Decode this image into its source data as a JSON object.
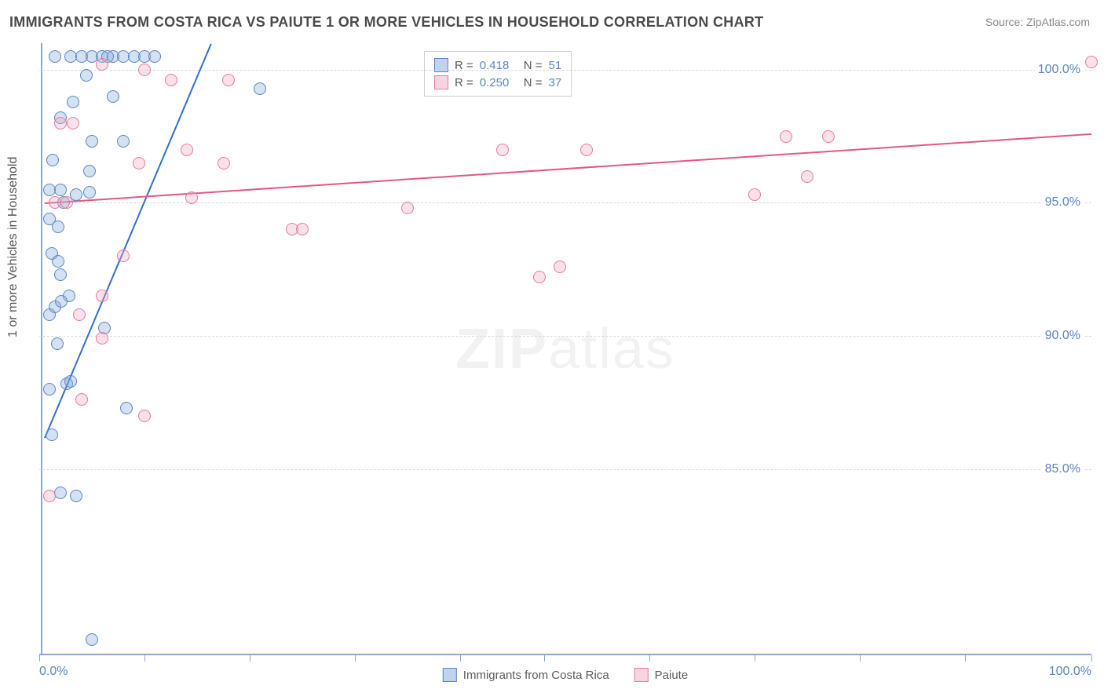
{
  "title": "IMMIGRANTS FROM COSTA RICA VS PAIUTE 1 OR MORE VEHICLES IN HOUSEHOLD CORRELATION CHART",
  "source": "Source: ZipAtlas.com",
  "watermark": {
    "part1": "ZIP",
    "part2": "atlas"
  },
  "chart": {
    "type": "scatter",
    "xlim": [
      0,
      100
    ],
    "ylim": [
      78,
      101
    ],
    "x_tick_positions": [
      0,
      10,
      20,
      30,
      40,
      48,
      58,
      68,
      78,
      88,
      100
    ],
    "x_tick_labels": {
      "0": "0.0%",
      "100": "100.0%"
    },
    "y_grid_positions": [
      85,
      90,
      95,
      100
    ],
    "y_tick_labels": [
      "85.0%",
      "90.0%",
      "95.0%",
      "100.0%"
    ],
    "y_axis_label": "1 or more Vehicles in Household",
    "background_color": "#ffffff",
    "grid_color": "#d9d9d9",
    "axis_color": "#8ca7d0",
    "tick_label_color": "#5b86c7",
    "marker_radius": 8,
    "series": [
      {
        "name": "Immigrants from Costa Rica",
        "color": "#5b86c7",
        "fill": "rgba(128,168,219,0.35)",
        "R": 0.418,
        "N": 51,
        "trend": {
          "x0": 0.5,
          "y0": 86.2,
          "x1": 16.3,
          "y1": 101,
          "color": "#2f6fd0",
          "width": 2
        },
        "points": [
          [
            1.5,
            100.5
          ],
          [
            3.0,
            100.5
          ],
          [
            4.0,
            100.5
          ],
          [
            5.0,
            100.5
          ],
          [
            6.0,
            100.5
          ],
          [
            7.0,
            100.5
          ],
          [
            8.0,
            100.5
          ],
          [
            9.0,
            100.5
          ],
          [
            10.0,
            100.5
          ],
          [
            11.0,
            100.5
          ],
          [
            6.5,
            100.5
          ],
          [
            4.5,
            99.8
          ],
          [
            21.0,
            99.3
          ],
          [
            7.0,
            99.0
          ],
          [
            3.2,
            98.8
          ],
          [
            2.0,
            98.2
          ],
          [
            5.0,
            97.3
          ],
          [
            8.0,
            97.3
          ],
          [
            1.3,
            96.6
          ],
          [
            4.8,
            96.2
          ],
          [
            1.0,
            95.5
          ],
          [
            2.0,
            95.5
          ],
          [
            3.5,
            95.3
          ],
          [
            4.8,
            95.4
          ],
          [
            2.3,
            95.0
          ],
          [
            1.0,
            94.4
          ],
          [
            1.8,
            94.1
          ],
          [
            1.2,
            93.1
          ],
          [
            1.8,
            92.8
          ],
          [
            2.0,
            92.3
          ],
          [
            2.8,
            91.5
          ],
          [
            1.5,
            91.1
          ],
          [
            1.0,
            90.8
          ],
          [
            2.1,
            91.3
          ],
          [
            6.2,
            90.3
          ],
          [
            1.7,
            89.7
          ],
          [
            2.6,
            88.2
          ],
          [
            3.0,
            88.3
          ],
          [
            1.0,
            88.0
          ],
          [
            8.3,
            87.3
          ],
          [
            1.2,
            86.3
          ],
          [
            3.5,
            84.0
          ],
          [
            2.0,
            84.1
          ],
          [
            5.0,
            78.6
          ]
        ]
      },
      {
        "name": "Paiute",
        "color": "#e77aa0",
        "fill": "rgba(242,170,195,0.35)",
        "R": 0.25,
        "N": 37,
        "trend": {
          "x0": 0.5,
          "y0": 95.0,
          "x1": 100,
          "y1": 97.6,
          "color": "#e35686",
          "width": 2
        },
        "points": [
          [
            100.0,
            100.3
          ],
          [
            6.0,
            100.2
          ],
          [
            10.0,
            100.0
          ],
          [
            12.5,
            99.6
          ],
          [
            18.0,
            99.6
          ],
          [
            3.2,
            98.0
          ],
          [
            2.0,
            98.0
          ],
          [
            71.0,
            97.5
          ],
          [
            75.0,
            97.5
          ],
          [
            14.0,
            97.0
          ],
          [
            44.0,
            97.0
          ],
          [
            52.0,
            97.0
          ],
          [
            9.5,
            96.5
          ],
          [
            17.5,
            96.5
          ],
          [
            73.0,
            96.0
          ],
          [
            68.0,
            95.3
          ],
          [
            14.5,
            95.2
          ],
          [
            1.5,
            95.0
          ],
          [
            2.6,
            95.0
          ],
          [
            35.0,
            94.8
          ],
          [
            24.0,
            94.0
          ],
          [
            25.0,
            94.0
          ],
          [
            8.0,
            93.0
          ],
          [
            49.5,
            92.6
          ],
          [
            47.5,
            92.2
          ],
          [
            6.0,
            91.5
          ],
          [
            3.8,
            90.8
          ],
          [
            6.0,
            89.9
          ],
          [
            4.0,
            87.6
          ],
          [
            10.0,
            87.0
          ],
          [
            1.0,
            84.0
          ]
        ]
      }
    ],
    "legend_top": {
      "rows": [
        {
          "swatch": "blue",
          "r_label": "R =",
          "r_val": "0.418",
          "n_label": "N =",
          "n_val": "51"
        },
        {
          "swatch": "pink",
          "r_label": "R =",
          "r_val": "0.250",
          "n_label": "N =",
          "n_val": "37"
        }
      ]
    },
    "legend_bottom": [
      {
        "swatch": "blue",
        "label": "Immigrants from Costa Rica"
      },
      {
        "swatch": "pink",
        "label": "Paiute"
      }
    ]
  }
}
